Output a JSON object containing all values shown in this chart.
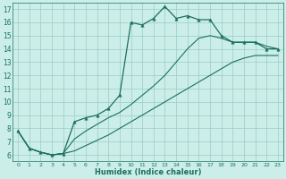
{
  "xlabel": "Humidex (Indice chaleur)",
  "bg_color": "#cceee8",
  "grid_color": "#99ccC4",
  "line_color": "#1a7060",
  "xlim": [
    -0.5,
    23.5
  ],
  "ylim": [
    5.5,
    17.5
  ],
  "xticks": [
    0,
    1,
    2,
    3,
    4,
    5,
    6,
    7,
    8,
    9,
    10,
    11,
    12,
    13,
    14,
    15,
    16,
    17,
    18,
    19,
    20,
    21,
    22,
    23
  ],
  "yticks": [
    6,
    7,
    8,
    9,
    10,
    11,
    12,
    13,
    14,
    15,
    16,
    17
  ],
  "line1_x": [
    0,
    1,
    2,
    3,
    4,
    5,
    6,
    7,
    8,
    9,
    10,
    11,
    12,
    13,
    14,
    15,
    16,
    17,
    18,
    19,
    20,
    21,
    22,
    23
  ],
  "line1_y": [
    7.8,
    6.5,
    6.2,
    6.0,
    6.1,
    6.3,
    6.7,
    7.1,
    7.5,
    8.0,
    8.5,
    9.0,
    9.5,
    10.0,
    10.5,
    11.0,
    11.5,
    12.0,
    12.5,
    13.0,
    13.3,
    13.5,
    13.5,
    13.5
  ],
  "line2_x": [
    0,
    1,
    2,
    3,
    4,
    5,
    6,
    7,
    8,
    9,
    10,
    11,
    12,
    13,
    14,
    15,
    16,
    17,
    18,
    19,
    20,
    21,
    22,
    23
  ],
  "line2_y": [
    7.8,
    6.5,
    6.2,
    6.0,
    6.1,
    7.2,
    7.8,
    8.3,
    8.8,
    9.2,
    9.8,
    10.5,
    11.2,
    12.0,
    13.0,
    14.0,
    14.8,
    15.0,
    14.8,
    14.5,
    14.5,
    14.5,
    14.2,
    14.0
  ],
  "line3_x": [
    0,
    1,
    2,
    3,
    4,
    5,
    6,
    7,
    8,
    9,
    10,
    11,
    12,
    13,
    14,
    15,
    16,
    17,
    18,
    19,
    20,
    21,
    22,
    23
  ],
  "line3_y": [
    7.8,
    6.5,
    6.2,
    6.0,
    6.1,
    8.5,
    8.8,
    9.0,
    9.5,
    10.5,
    16.0,
    15.8,
    16.3,
    17.2,
    16.3,
    16.5,
    16.2,
    16.2,
    15.0,
    14.5,
    14.5,
    14.5,
    14.0,
    14.0
  ]
}
